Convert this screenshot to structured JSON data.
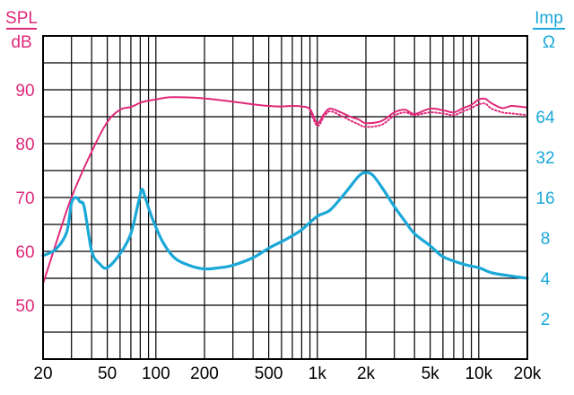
{
  "chart_data": {
    "type": "line",
    "title": "",
    "x_scale": "log",
    "xlim": [
      20,
      20000
    ],
    "x_ticks": [
      {
        "value": 20,
        "label": "20"
      },
      {
        "value": 50,
        "label": "50"
      },
      {
        "value": 100,
        "label": "100"
      },
      {
        "value": 200,
        "label": "200"
      },
      {
        "value": 500,
        "label": "500"
      },
      {
        "value": 1000,
        "label": "1k"
      },
      {
        "value": 2000,
        "label": "2k"
      },
      {
        "value": 5000,
        "label": "5k"
      },
      {
        "value": 10000,
        "label": "10k"
      },
      {
        "value": 20000,
        "label": "20k"
      }
    ],
    "left_axis": {
      "label_top": "SPL",
      "label_bottom": "dB",
      "color": "#e0287a",
      "ylim": [
        40,
        100
      ],
      "ticks": [
        {
          "value": 50,
          "label": "50"
        },
        {
          "value": 60,
          "label": "60"
        },
        {
          "value": 70,
          "label": "70"
        },
        {
          "value": 80,
          "label": "80"
        },
        {
          "value": 90,
          "label": "90"
        }
      ]
    },
    "right_axis": {
      "label_top": "Imp",
      "label_bottom": "Ω",
      "color": "#1aa8d8",
      "scale": "log2",
      "ylim": [
        1,
        256
      ],
      "ticks": [
        {
          "value": 2,
          "label": "2"
        },
        {
          "value": 4,
          "label": "4"
        },
        {
          "value": 8,
          "label": "8"
        },
        {
          "value": 16,
          "label": "16"
        },
        {
          "value": 32,
          "label": "32"
        },
        {
          "value": 64,
          "label": "64"
        }
      ]
    },
    "grid": true,
    "series": [
      {
        "axis": "left",
        "style": "solid",
        "color": "#e0287a",
        "x": [
          20,
          25,
          30,
          40,
          50,
          60,
          70,
          80,
          90,
          100,
          120,
          150,
          200,
          300,
          400,
          500,
          600,
          700,
          800,
          900,
          1000,
          1100,
          1200,
          1400,
          1600,
          1800,
          2000,
          2500,
          3000,
          3500,
          4000,
          5000,
          6000,
          7000,
          8000,
          9000,
          10000,
          11000,
          12000,
          14000,
          16000,
          20000
        ],
        "values": [
          54,
          63,
          70,
          78.5,
          84,
          86.3,
          86.8,
          87.6,
          88,
          88.2,
          88.6,
          88.6,
          88.4,
          87.8,
          87.3,
          87,
          86.9,
          87,
          86.9,
          86.4,
          83.8,
          85.5,
          86.5,
          85.8,
          85,
          84.5,
          83.8,
          84.2,
          85.8,
          86.3,
          85.5,
          86.5,
          86.2,
          85.8,
          86.6,
          87.2,
          88.2,
          88.3,
          87.5,
          86.6,
          87,
          86.7
        ]
      },
      {
        "axis": "left",
        "style": "dotted",
        "color": "#e0287a",
        "x": [
          900,
          1000,
          1100,
          1200,
          1400,
          1600,
          1800,
          2000,
          2500,
          3000,
          3500,
          4000,
          5000,
          6000,
          7000,
          8000,
          9000,
          10000,
          11000,
          12000,
          14000,
          16000,
          20000
        ],
        "values": [
          86.2,
          83.3,
          85,
          86,
          85.2,
          84.3,
          83.6,
          83.1,
          83.5,
          85.2,
          85.8,
          85.3,
          85.8,
          85.6,
          85.3,
          86,
          86.6,
          87.3,
          87.4,
          86.5,
          85.8,
          85.6,
          85.3
        ]
      },
      {
        "axis": "right",
        "style": "solid",
        "color": "#1aa8d8",
        "x": [
          20,
          24,
          28,
          30,
          32,
          34,
          36,
          40,
          45,
          50,
          60,
          70,
          78,
          82,
          86,
          95,
          110,
          130,
          160,
          200,
          250,
          300,
          400,
          500,
          600,
          700,
          800,
          1000,
          1200,
          1500,
          1800,
          2000,
          2200,
          2500,
          3000,
          3500,
          4000,
          5000,
          6000,
          8000,
          10000,
          12000,
          15000,
          20000
        ],
        "values": [
          5.9,
          6.6,
          8.8,
          14.5,
          16,
          14.8,
          13.6,
          6.4,
          5.1,
          4.8,
          6.1,
          8.6,
          14.8,
          18.4,
          15.9,
          11.2,
          7.5,
          5.7,
          5,
          4.7,
          4.8,
          5,
          5.7,
          6.7,
          7.5,
          8.3,
          9.2,
          11.6,
          12.9,
          17.5,
          23,
          24.6,
          23.5,
          19.2,
          13.7,
          10.6,
          8.6,
          7,
          5.8,
          5.1,
          4.8,
          4.4,
          4.2,
          4
        ]
      }
    ]
  }
}
